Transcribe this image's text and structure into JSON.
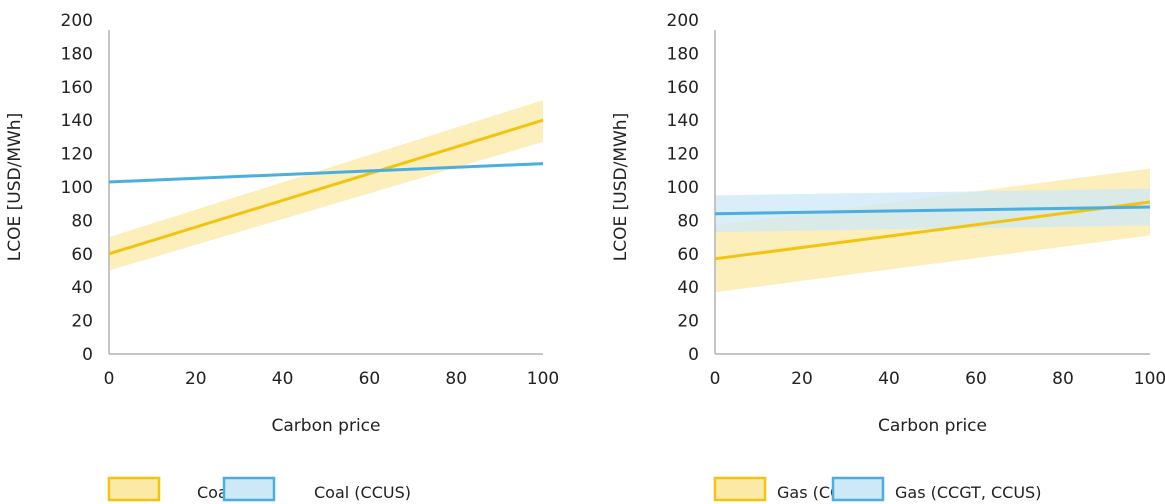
{
  "chart_data": [
    {
      "type": "line",
      "xlabel": "Carbon price",
      "ylabel": "LCOE [USD/MWh]",
      "xlim": [
        0,
        100
      ],
      "ylim": [
        0,
        200
      ],
      "x_ticks": [
        "0",
        "20",
        "40",
        "60",
        "80",
        "100"
      ],
      "y_ticks": [
        "0",
        "20",
        "40",
        "60",
        "80",
        "100",
        "120",
        "140",
        "160",
        "180",
        "200"
      ],
      "grid": false,
      "legend_position": "bottom",
      "series": [
        {
          "name": "Coal",
          "color": "#f2c40f",
          "band_color": "#fbeaa6",
          "x": [
            0,
            100
          ],
          "values": [
            60,
            140
          ],
          "lower": [
            50,
            127
          ],
          "upper": [
            70,
            152
          ]
        },
        {
          "name": "Coal (CCUS)",
          "color": "#4aaee0",
          "band_color": "#cde8f7",
          "x": [
            0,
            100
          ],
          "values": [
            103,
            114
          ],
          "lower": [
            103,
            114
          ],
          "upper": [
            103,
            114
          ]
        }
      ]
    },
    {
      "type": "line",
      "xlabel": "Carbon price",
      "ylabel": "LCOE [USD/MWh]",
      "xlim": [
        0,
        100
      ],
      "ylim": [
        0,
        200
      ],
      "x_ticks": [
        "0",
        "20",
        "40",
        "60",
        "80",
        "100"
      ],
      "y_ticks": [
        "0",
        "20",
        "40",
        "60",
        "80",
        "100",
        "120",
        "140",
        "160",
        "180",
        "200"
      ],
      "grid": false,
      "legend_position": "bottom",
      "series": [
        {
          "name": "Gas (CCGT)",
          "color": "#f2c40f",
          "band_color": "#fbeaa6",
          "x": [
            0,
            100
          ],
          "values": [
            57,
            91
          ],
          "lower": [
            37,
            71
          ],
          "upper": [
            77,
            111
          ]
        },
        {
          "name": "Gas (CCGT, CCUS)",
          "color": "#4aaee0",
          "band_color": "#cde8f7",
          "x": [
            0,
            100
          ],
          "values": [
            84,
            88
          ],
          "lower": [
            73,
            77
          ],
          "upper": [
            95,
            99
          ]
        }
      ]
    }
  ]
}
